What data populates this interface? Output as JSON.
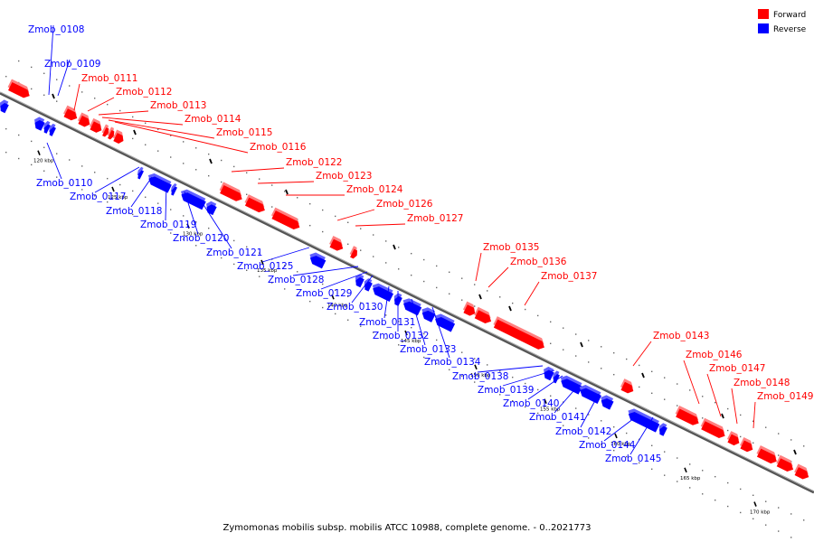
{
  "caption": "Zymomonas mobilis subsp. mobilis ATCC 10988, complete genome. - 0..2021773",
  "legend": [
    {
      "label": "Forward",
      "color": "#ff0000"
    },
    {
      "label": "Reverse",
      "color": "#0000ff"
    }
  ],
  "colors": {
    "forward": "#ff0000",
    "reverse": "#0000ff",
    "backbone": "#555555"
  },
  "ticks": [
    "120 kbp",
    "125 kbp",
    "130 kbp",
    "135 kbp",
    "140 kbp",
    "145 kbp",
    "150 kbp",
    "155 kbp",
    "160 kbp",
    "165 kbp",
    "170 kbp"
  ],
  "genes_forward": [
    "Zmob_0111",
    "Zmob_0112",
    "Zmob_0113",
    "Zmob_0114",
    "Zmob_0115",
    "Zmob_0116",
    "Zmob_0122",
    "Zmob_0123",
    "Zmob_0124",
    "Zmob_0126",
    "Zmob_0127",
    "Zmob_0135",
    "Zmob_0136",
    "Zmob_0137",
    "Zmob_0143",
    "Zmob_0146",
    "Zmob_0147",
    "Zmob_0148",
    "Zmob_0149"
  ],
  "genes_reverse": [
    "Zmob_0108",
    "Zmob_0109",
    "Zmob_0110",
    "Zmob_0117",
    "Zmob_0118",
    "Zmob_0119",
    "Zmob_0120",
    "Zmob_0121",
    "Zmob_0125",
    "Zmob_0128",
    "Zmob_0129",
    "Zmob_0130",
    "Zmob_0131",
    "Zmob_0132",
    "Zmob_0133",
    "Zmob_0134",
    "Zmob_0138",
    "Zmob_0139",
    "Zmob_0140",
    "Zmob_0141",
    "Zmob_0142",
    "Zmob_0144",
    "Zmob_0145"
  ]
}
